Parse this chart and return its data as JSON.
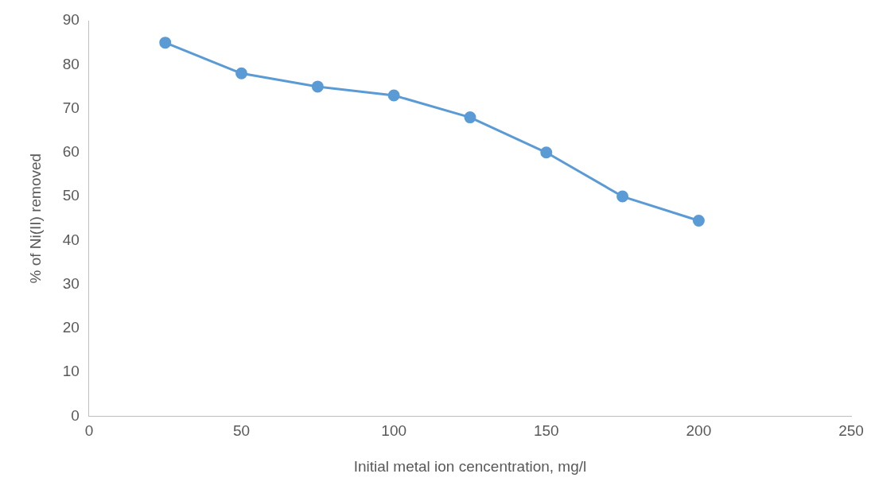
{
  "chart_data": {
    "type": "line",
    "xlabel": "Initial metal ion cencentration, mg/l",
    "ylabel": "% of Ni(II) removed",
    "x": [
      25,
      50,
      75,
      100,
      125,
      150,
      175,
      200
    ],
    "series": [
      {
        "color": "#5b9bd5",
        "values": [
          85,
          78,
          75,
          73,
          68,
          60,
          50,
          44.5
        ]
      }
    ],
    "xlim": [
      0,
      250
    ],
    "xticks": [
      0,
      50,
      100,
      150,
      200,
      250
    ],
    "ylim": [
      0,
      90
    ],
    "yticks": [
      0,
      10,
      20,
      30,
      40,
      50,
      60,
      70,
      80,
      90
    ],
    "grid": false,
    "legend": false,
    "marker": "circle",
    "line_style": "solid"
  }
}
